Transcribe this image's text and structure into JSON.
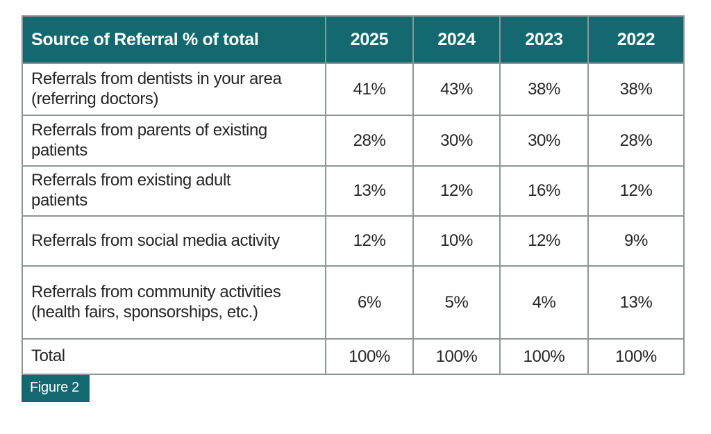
{
  "table": {
    "header": {
      "label": "Source of Referral % of total",
      "years": [
        "2025",
        "2024",
        "2023",
        "2022"
      ]
    },
    "rows": [
      {
        "label": "Referrals from dentists in your area (referring doctors)",
        "values": [
          "41%",
          "43%",
          "38%",
          "38%"
        ]
      },
      {
        "label": "Referrals from parents of existing patients",
        "values": [
          "28%",
          "30%",
          "30%",
          "28%"
        ]
      },
      {
        "label": "Referrals from existing adult patients",
        "values": [
          "13%",
          "12%",
          "16%",
          "12%"
        ]
      },
      {
        "label": "Referrals from social media activity",
        "values": [
          "12%",
          "10%",
          "12%",
          "9%"
        ]
      },
      {
        "label": "Referrals from community activities (health fairs, sponsorships, etc.)",
        "values": [
          "6%",
          "5%",
          "4%",
          "13%"
        ]
      },
      {
        "label": "Total",
        "values": [
          "100%",
          "100%",
          "100%",
          "100%"
        ]
      }
    ]
  },
  "figure_label": "Figure 2",
  "colors": {
    "teal": "#13696f",
    "grid": "#8f9494",
    "text": "#262626",
    "header_text": "#ffffff",
    "background": "#ffffff"
  },
  "chart_data": {
    "type": "table",
    "title": "Source of Referral % of total",
    "categories": [
      "2025",
      "2024",
      "2023",
      "2022"
    ],
    "unit": "%",
    "series": [
      {
        "name": "Referrals from dentists in your area (referring doctors)",
        "values": [
          41,
          43,
          38,
          38
        ]
      },
      {
        "name": "Referrals from parents of existing patients",
        "values": [
          28,
          30,
          30,
          28
        ]
      },
      {
        "name": "Referrals from existing adult patients",
        "values": [
          13,
          12,
          16,
          12
        ]
      },
      {
        "name": "Referrals from social media activity",
        "values": [
          12,
          10,
          12,
          9
        ]
      },
      {
        "name": "Referrals from community activities (health fairs, sponsorships, etc.)",
        "values": [
          6,
          5,
          4,
          13
        ]
      },
      {
        "name": "Total",
        "values": [
          100,
          100,
          100,
          100
        ]
      }
    ],
    "figure_caption": "Figure 2"
  }
}
